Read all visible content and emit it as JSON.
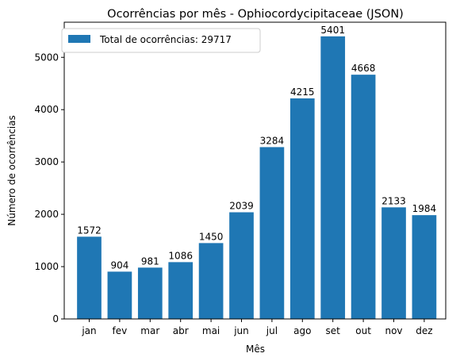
{
  "chart_data": {
    "type": "bar",
    "title": "Ocorrências por mês - Ophiocordycipitaceae (JSON)",
    "xlabel": "Mês",
    "ylabel": "Número de ocorrências",
    "categories": [
      "jan",
      "fev",
      "mar",
      "abr",
      "mai",
      "jun",
      "jul",
      "ago",
      "set",
      "out",
      "nov",
      "dez"
    ],
    "values": [
      1572,
      904,
      981,
      1086,
      1450,
      2039,
      3284,
      4215,
      5401,
      4668,
      2133,
      1984
    ],
    "ylim": [
      0,
      5671
    ],
    "yticks": [
      0,
      1000,
      2000,
      3000,
      4000,
      5000
    ],
    "legend": {
      "label": "Total de ocorrências: 29717",
      "placement": "upper-left"
    },
    "grid": false,
    "bar_color": "#1f77b4"
  }
}
